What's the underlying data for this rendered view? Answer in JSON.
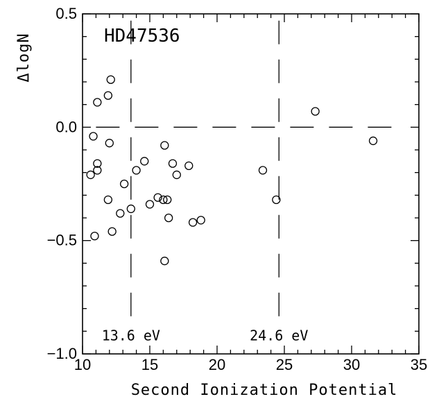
{
  "chart_data": {
    "type": "scatter",
    "title": "HD47536",
    "xlabel": "Second Ionization Potential",
    "ylabel": "ΔlogN",
    "xlim": [
      10,
      35
    ],
    "ylim": [
      -1.0,
      0.5
    ],
    "x_ticks": [
      10,
      15,
      20,
      25,
      30,
      35
    ],
    "x_tick_labels": [
      "10",
      "15",
      "20",
      "25",
      "30",
      "35"
    ],
    "y_ticks": [
      -1.0,
      -0.5,
      0.0,
      0.5
    ],
    "y_tick_labels": [
      "−1.0",
      "−0.5",
      "0.0",
      "0.5"
    ],
    "grid": false,
    "marker": "open-circle",
    "reference_lines": [
      {
        "orientation": "horizontal",
        "value": 0.0,
        "style": "dashed"
      },
      {
        "orientation": "vertical",
        "value": 13.6,
        "style": "dashed",
        "label": "13.6  eV"
      },
      {
        "orientation": "vertical",
        "value": 24.6,
        "style": "dashed",
        "label": "24.6  eV"
      }
    ],
    "points": [
      {
        "x": 10.6,
        "y": -0.21
      },
      {
        "x": 10.8,
        "y": -0.04
      },
      {
        "x": 10.9,
        "y": -0.48
      },
      {
        "x": 11.1,
        "y": 0.11
      },
      {
        "x": 11.1,
        "y": -0.16
      },
      {
        "x": 11.1,
        "y": -0.19
      },
      {
        "x": 11.9,
        "y": 0.14
      },
      {
        "x": 11.9,
        "y": -0.32
      },
      {
        "x": 12.0,
        "y": -0.07
      },
      {
        "x": 12.1,
        "y": 0.21
      },
      {
        "x": 12.2,
        "y": -0.46
      },
      {
        "x": 12.8,
        "y": -0.38
      },
      {
        "x": 13.1,
        "y": -0.25
      },
      {
        "x": 13.6,
        "y": -0.36
      },
      {
        "x": 14.0,
        "y": -0.19
      },
      {
        "x": 14.6,
        "y": -0.15
      },
      {
        "x": 15.0,
        "y": -0.34
      },
      {
        "x": 15.6,
        "y": -0.31
      },
      {
        "x": 16.0,
        "y": -0.32
      },
      {
        "x": 16.1,
        "y": -0.08
      },
      {
        "x": 16.1,
        "y": -0.59
      },
      {
        "x": 16.3,
        "y": -0.32
      },
      {
        "x": 16.4,
        "y": -0.4
      },
      {
        "x": 16.7,
        "y": -0.16
      },
      {
        "x": 17.0,
        "y": -0.21
      },
      {
        "x": 17.9,
        "y": -0.17
      },
      {
        "x": 18.2,
        "y": -0.42
      },
      {
        "x": 18.8,
        "y": -0.41
      },
      {
        "x": 23.4,
        "y": -0.19
      },
      {
        "x": 24.4,
        "y": -0.32
      },
      {
        "x": 27.3,
        "y": 0.07
      },
      {
        "x": 31.6,
        "y": -0.06
      }
    ]
  }
}
